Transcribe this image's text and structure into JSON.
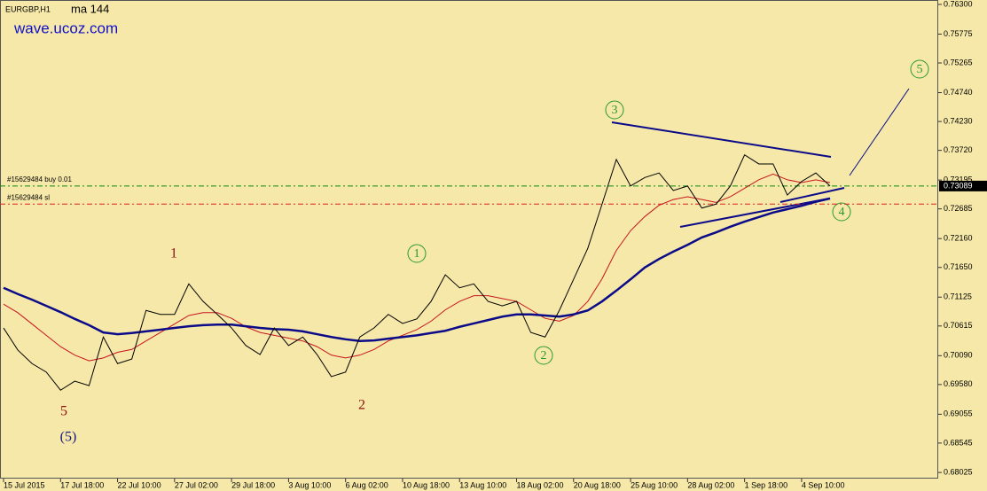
{
  "chart_data": {
    "type": "line",
    "title": "EURGBP,H1",
    "annotation": "wave.ucoz.com",
    "categories": [
      "15 Jul 2015",
      null,
      null,
      null,
      "17 Jul 18:00",
      null,
      null,
      null,
      "22 Jul 10:00",
      null,
      null,
      null,
      "27 Jul 02:00",
      null,
      null,
      null,
      "29 Jul 18:00",
      null,
      null,
      null,
      "3 Aug 10:00",
      null,
      null,
      null,
      "6 Aug 02:00",
      null,
      null,
      null,
      "10 Aug 18:00",
      null,
      null,
      null,
      "13 Aug 10:00",
      null,
      null,
      null,
      "18 Aug 02:00",
      null,
      null,
      null,
      "20 Aug 18:00",
      null,
      null,
      null,
      "25 Aug 10:00",
      null,
      null,
      null,
      "28 Aug 02:00",
      null,
      null,
      null,
      "1 Sep 18:00",
      null,
      null,
      null,
      "4 Sep 10:00",
      null,
      null
    ],
    "series": [
      {
        "color": "#000000",
        "values": [
          0.7058,
          0.7019,
          0.6995,
          0.698,
          0.6948,
          0.6964,
          0.6956,
          0.7042,
          0.6995,
          0.7003,
          0.7089,
          0.7082,
          0.7082,
          0.7136,
          0.7105,
          0.7082,
          0.7058,
          0.7027,
          0.7011,
          0.7058,
          0.7027,
          0.7042,
          0.7011,
          0.6972,
          0.698,
          0.7042,
          0.7058,
          0.7082,
          0.7066,
          0.7074,
          0.7105,
          0.7152,
          0.7129,
          0.7136,
          0.7105,
          0.7097,
          0.7105,
          0.705,
          0.7042,
          0.7089,
          0.7144,
          0.7199,
          0.7277,
          0.7356,
          0.7309,
          0.7324,
          0.7332,
          0.7301,
          0.7309,
          0.727,
          0.7277,
          0.7309,
          0.7364,
          0.7348,
          0.7348,
          0.7293,
          0.7317,
          0.7332,
          0.7309
        ]
      },
      {
        "name": "ma 144",
        "color": "#0b0b8a",
        "values": [
          0.7129,
          0.7118,
          0.7108,
          0.7097,
          0.7086,
          0.7074,
          0.7063,
          0.705,
          0.7047,
          0.7049,
          0.7052,
          0.7055,
          0.7058,
          0.7061,
          0.7063,
          0.7064,
          0.7064,
          0.7061,
          0.7058,
          0.7056,
          0.7055,
          0.7052,
          0.7047,
          0.7042,
          0.7038,
          0.7035,
          0.7036,
          0.7039,
          0.7042,
          0.7045,
          0.7049,
          0.7053,
          0.706,
          0.7066,
          0.7072,
          0.7078,
          0.7082,
          0.7082,
          0.708,
          0.7078,
          0.7082,
          0.7089,
          0.7105,
          0.7124,
          0.7144,
          0.7165,
          0.718,
          0.7193,
          0.7205,
          0.7218,
          0.7227,
          0.7237,
          0.7246,
          0.7254,
          0.7262,
          0.7268,
          0.7274,
          0.7281,
          0.7287
        ]
      },
      {
        "color": "#c8141e",
        "values": [
          0.71,
          0.7085,
          0.7065,
          0.7045,
          0.7025,
          0.701,
          0.7,
          0.7005,
          0.7015,
          0.702,
          0.7035,
          0.705,
          0.7065,
          0.708,
          0.7085,
          0.7085,
          0.7075,
          0.706,
          0.705,
          0.7045,
          0.704,
          0.7035,
          0.7025,
          0.701,
          0.7005,
          0.701,
          0.702,
          0.7035,
          0.7045,
          0.7055,
          0.707,
          0.709,
          0.7105,
          0.7115,
          0.7115,
          0.711,
          0.7105,
          0.709,
          0.7075,
          0.707,
          0.708,
          0.7105,
          0.7145,
          0.7195,
          0.723,
          0.7255,
          0.7275,
          0.7285,
          0.729,
          0.7285,
          0.728,
          0.729,
          0.7305,
          0.732,
          0.733,
          0.732,
          0.7315,
          0.732,
          0.7315
        ]
      }
    ],
    "ylim": [
      0.67917,
      0.76378
    ],
    "yticks": [
      {
        "value": 0.763,
        "label": "0.76300"
      },
      {
        "value": 0.75775,
        "label": "0.75775"
      },
      {
        "value": 0.75265,
        "label": "0.75265"
      },
      {
        "value": 0.7474,
        "label": "0.74740"
      },
      {
        "value": 0.7423,
        "label": "0.74230"
      },
      {
        "value": 0.7372,
        "label": "0.73720"
      },
      {
        "value": 0.73195,
        "label": "0.73195"
      },
      {
        "value": 0.72685,
        "label": "0.72685"
      },
      {
        "value": 0.7216,
        "label": "0.72160"
      },
      {
        "value": 0.7165,
        "label": "0.71650"
      },
      {
        "value": 0.71125,
        "label": "0.71125"
      },
      {
        "value": 0.70615,
        "label": "0.70615"
      },
      {
        "value": 0.7009,
        "label": "0.70090"
      },
      {
        "value": 0.6958,
        "label": "0.69580"
      },
      {
        "value": 0.69055,
        "label": "0.69055"
      },
      {
        "value": 0.68545,
        "label": "0.68545"
      },
      {
        "value": 0.68025,
        "label": "0.68025"
      }
    ],
    "orders": [
      {
        "label": "#15629484 buy 0.01",
        "value": 0.73089,
        "color": "#0a8a0a"
      },
      {
        "label": "#15629484 sl",
        "value": 0.7277,
        "color": "#e02020"
      }
    ],
    "wave_labels": [
      "1",
      "2",
      "5",
      "(5)"
    ],
    "circled_labels": [
      "1",
      "2",
      "3",
      "4",
      "5"
    ]
  }
}
